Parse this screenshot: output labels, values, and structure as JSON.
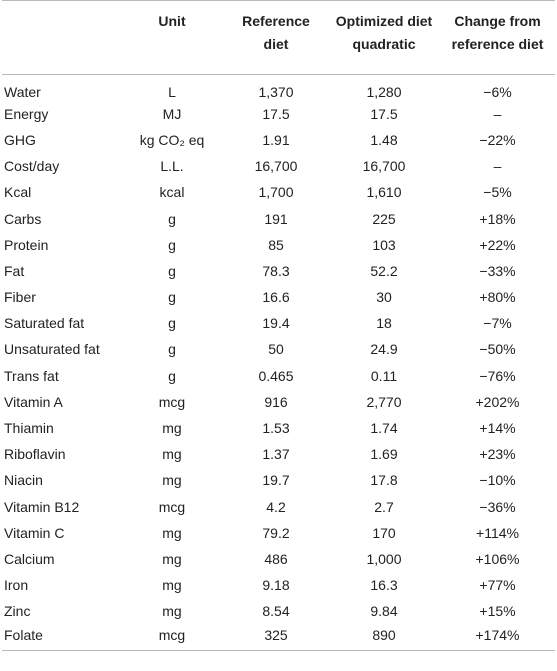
{
  "header": {
    "col_name": "",
    "unit": "Unit",
    "reference_line1": "Reference",
    "reference_line2": "diet",
    "optimized_line1": "Optimized diet",
    "optimized_line2": "quadratic",
    "change_line1": "Change from",
    "change_line2": "reference diet"
  },
  "rows": [
    {
      "name": "Water",
      "unit": "L",
      "reference": "1,370",
      "optimized": "1,280",
      "change": "−6%"
    },
    {
      "name": "Energy",
      "unit": "MJ",
      "reference": "17.5",
      "optimized": "17.5",
      "change": "–"
    },
    {
      "name": "GHG",
      "unit": "kg CO₂ eq",
      "reference": "1.91",
      "optimized": "1.48",
      "change": "−22%"
    },
    {
      "name": "Cost/day",
      "unit": "L.L.",
      "reference": "16,700",
      "optimized": "16,700",
      "change": "–"
    },
    {
      "name": "Kcal",
      "unit": "kcal",
      "reference": "1,700",
      "optimized": "1,610",
      "change": "−5%"
    },
    {
      "name": "Carbs",
      "unit": "g",
      "reference": "191",
      "optimized": "225",
      "change": "+18%"
    },
    {
      "name": "Protein",
      "unit": "g",
      "reference": "85",
      "optimized": "103",
      "change": "+22%"
    },
    {
      "name": "Fat",
      "unit": "g",
      "reference": "78.3",
      "optimized": "52.2",
      "change": "−33%"
    },
    {
      "name": "Fiber",
      "unit": "g",
      "reference": "16.6",
      "optimized": "30",
      "change": "+80%"
    },
    {
      "name": "Saturated fat",
      "unit": "g",
      "reference": "19.4",
      "optimized": "18",
      "change": "−7%"
    },
    {
      "name": "Unsaturated fat",
      "unit": "g",
      "reference": "50",
      "optimized": "24.9",
      "change": "−50%"
    },
    {
      "name": "Trans fat",
      "unit": "g",
      "reference": "0.465",
      "optimized": "0.11",
      "change": "−76%"
    },
    {
      "name": "Vitamin A",
      "unit": "mcg",
      "reference": "916",
      "optimized": "2,770",
      "change": "+202%"
    },
    {
      "name": "Thiamin",
      "unit": "mg",
      "reference": "1.53",
      "optimized": "1.74",
      "change": "+14%"
    },
    {
      "name": "Riboflavin",
      "unit": "mg",
      "reference": "1.37",
      "optimized": "1.69",
      "change": "+23%"
    },
    {
      "name": "Niacin",
      "unit": "mg",
      "reference": "19.7",
      "optimized": "17.8",
      "change": "−10%"
    },
    {
      "name": "Vitamin B12",
      "unit": "mcg",
      "reference": "4.2",
      "optimized": "2.7",
      "change": "−36%"
    },
    {
      "name": "Vitamin C",
      "unit": "mg",
      "reference": "79.2",
      "optimized": "170",
      "change": "+114%"
    },
    {
      "name": "Calcium",
      "unit": "mg",
      "reference": "486",
      "optimized": "1,000",
      "change": "+106%"
    },
    {
      "name": "Iron",
      "unit": "mg",
      "reference": "9.18",
      "optimized": "16.3",
      "change": "+77%"
    },
    {
      "name": "Zinc",
      "unit": "mg",
      "reference": "8.54",
      "optimized": "9.84",
      "change": "+15%"
    },
    {
      "name": "Folate",
      "unit": "mcg",
      "reference": "325",
      "optimized": "890",
      "change": "+174%"
    }
  ]
}
